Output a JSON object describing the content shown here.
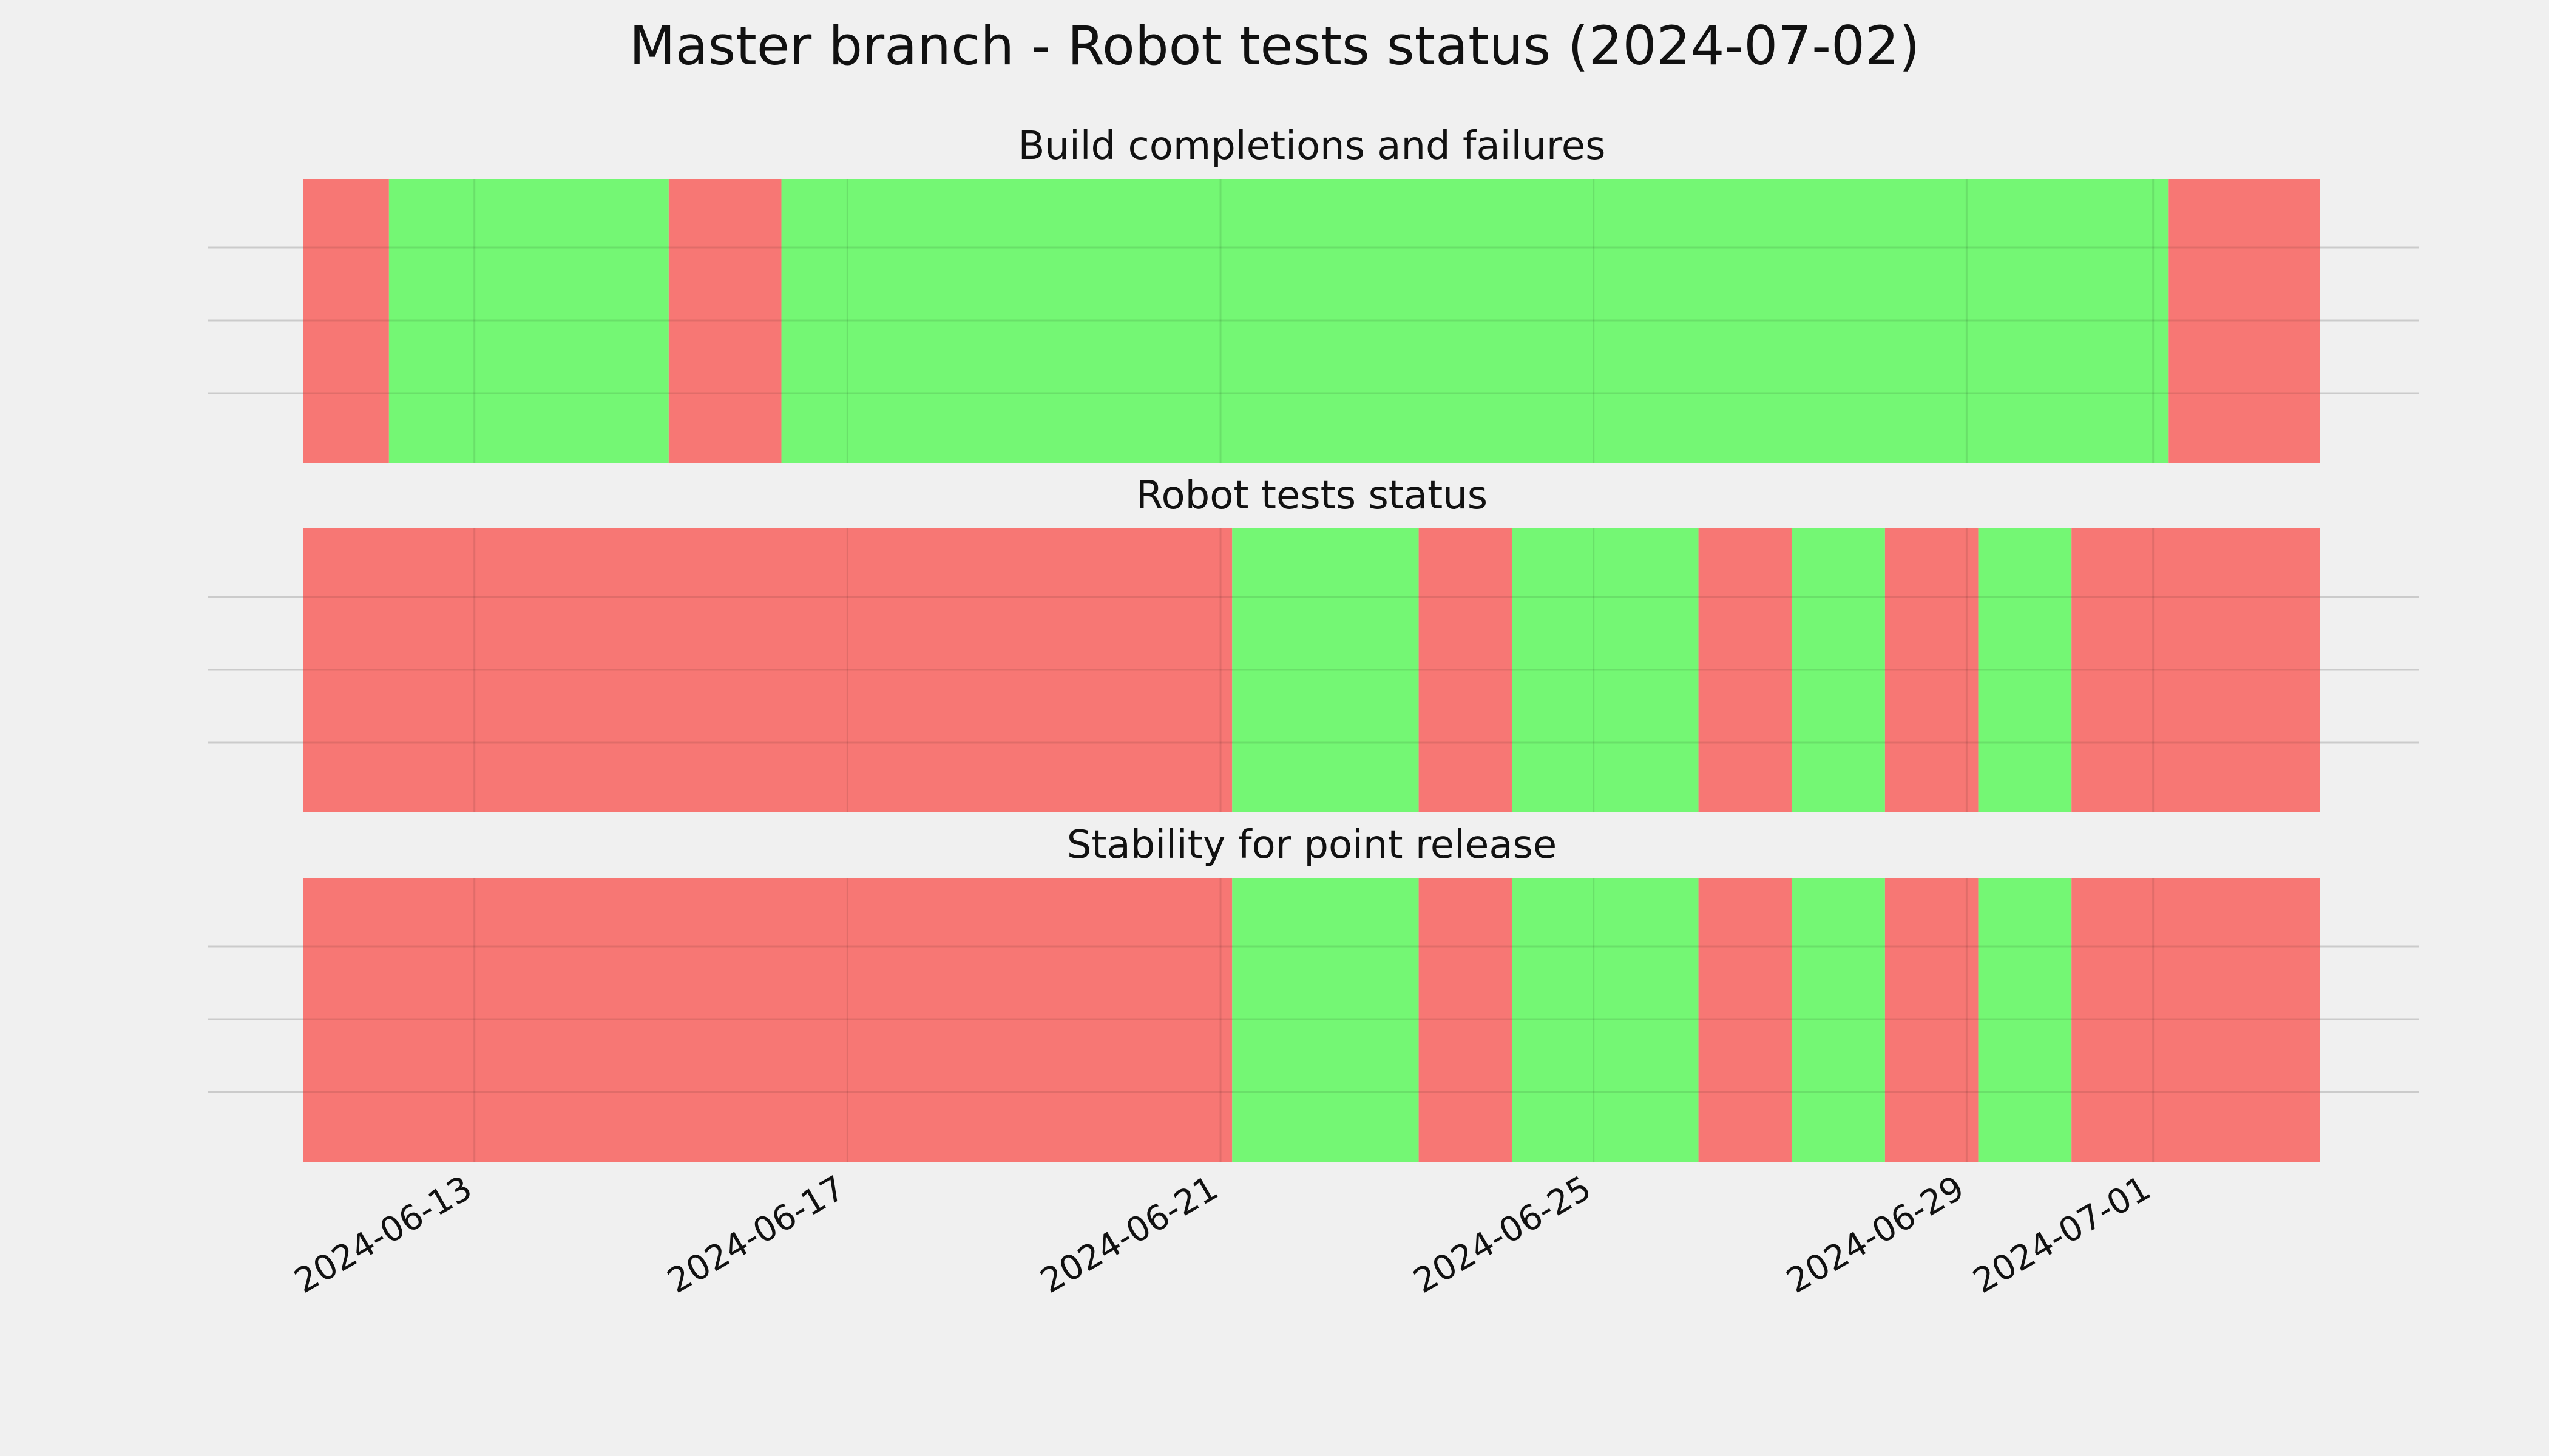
{
  "title": "Master branch - Robot tests status (2024-07-02)",
  "colors": {
    "background": "#f0f0f0",
    "pass": "#74f774",
    "fail": "#f77774",
    "grid": "#cbcbcb"
  },
  "chart_data": {
    "type": "broken-bar timeline",
    "x_axis": {
      "type": "date",
      "range": [
        "2024-06-11T04:00",
        "2024-07-02T19:00"
      ],
      "ticks": [
        "2024-06-13",
        "2024-06-17",
        "2024-06-21",
        "2024-06-25",
        "2024-06-29",
        "2024-07-01"
      ],
      "tick_rotation_deg": 30,
      "grid": true
    },
    "y_axis": {
      "ticks": [],
      "grid": true,
      "grid_lines_per_panel": 3
    },
    "legend": "none",
    "panels": [
      {
        "title": "Build completions and failures",
        "segments": [
          {
            "start": "2024-06-11T04:00",
            "end": "2024-06-12T02:00",
            "status": "fail"
          },
          {
            "start": "2024-06-12T02:00",
            "end": "2024-06-15T02:00",
            "status": "pass"
          },
          {
            "start": "2024-06-15T02:00",
            "end": "2024-06-16T07:00",
            "status": "fail"
          },
          {
            "start": "2024-06-16T07:00",
            "end": "2024-07-01T04:00",
            "status": "pass"
          },
          {
            "start": "2024-07-01T04:00",
            "end": "2024-07-02T19:00",
            "status": "fail"
          }
        ]
      },
      {
        "title": "Robot tests status",
        "segments": [
          {
            "start": "2024-06-11T04:00",
            "end": "2024-06-21T03:00",
            "status": "fail"
          },
          {
            "start": "2024-06-21T03:00",
            "end": "2024-06-23T03:00",
            "status": "pass"
          },
          {
            "start": "2024-06-23T03:00",
            "end": "2024-06-24T03:00",
            "status": "fail"
          },
          {
            "start": "2024-06-24T03:00",
            "end": "2024-06-26T03:00",
            "status": "pass"
          },
          {
            "start": "2024-06-26T03:00",
            "end": "2024-06-27T03:00",
            "status": "fail"
          },
          {
            "start": "2024-06-27T03:00",
            "end": "2024-06-28T03:00",
            "status": "pass"
          },
          {
            "start": "2024-06-28T03:00",
            "end": "2024-06-29T03:00",
            "status": "fail"
          },
          {
            "start": "2024-06-29T03:00",
            "end": "2024-06-30T03:00",
            "status": "pass"
          },
          {
            "start": "2024-06-30T03:00",
            "end": "2024-07-02T19:00",
            "status": "fail"
          }
        ]
      },
      {
        "title": "Stability for point release",
        "segments": [
          {
            "start": "2024-06-11T04:00",
            "end": "2024-06-21T03:00",
            "status": "fail"
          },
          {
            "start": "2024-06-21T03:00",
            "end": "2024-06-23T03:00",
            "status": "pass"
          },
          {
            "start": "2024-06-23T03:00",
            "end": "2024-06-24T03:00",
            "status": "fail"
          },
          {
            "start": "2024-06-24T03:00",
            "end": "2024-06-26T03:00",
            "status": "pass"
          },
          {
            "start": "2024-06-26T03:00",
            "end": "2024-06-27T03:00",
            "status": "fail"
          },
          {
            "start": "2024-06-27T03:00",
            "end": "2024-06-28T03:00",
            "status": "pass"
          },
          {
            "start": "2024-06-28T03:00",
            "end": "2024-06-29T03:00",
            "status": "fail"
          },
          {
            "start": "2024-06-29T03:00",
            "end": "2024-06-30T03:00",
            "status": "pass"
          },
          {
            "start": "2024-06-30T03:00",
            "end": "2024-07-02T19:00",
            "status": "fail"
          }
        ]
      }
    ]
  }
}
